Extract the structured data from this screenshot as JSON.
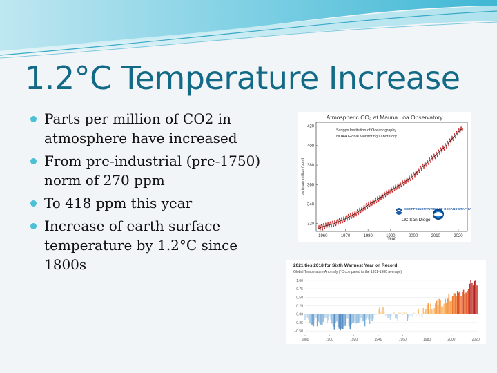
{
  "slide": {
    "title": "1.2°C Temperature Increase",
    "bullets": [
      "Parts per million of CO2 in atmosphere have increased",
      "From pre-industrial (pre-1750) norm of 270 ppm",
      "To 418 ppm this year",
      "Increase of earth surface temperature by 1.2°C since 1800s"
    ],
    "accent_color": "#136a86",
    "bullet_color": "#4cc1d6"
  },
  "chart_data": [
    {
      "type": "line",
      "title": "Atmospheric CO₂ at Mauna Loa Observatory",
      "subtitle_lines": [
        "Scripps Institution of Oceanography",
        "NOAA Global Monitoring Laboratory"
      ],
      "xlabel": "Year",
      "ylabel": "parts per million (ppm)",
      "xlim": [
        1957,
        2024
      ],
      "ylim": [
        312,
        424
      ],
      "x_ticks": [
        1960,
        1970,
        1980,
        1990,
        2000,
        2010,
        2020
      ],
      "y_ticks": [
        320,
        340,
        360,
        380,
        400,
        420
      ],
      "series": [
        {
          "color": "#c81414",
          "x": [
            1958,
            1960,
            1965,
            1970,
            1975,
            1980,
            1985,
            1990,
            1995,
            2000,
            2005,
            2010,
            2015,
            2020,
            2022
          ],
          "values": [
            315,
            317,
            320,
            325,
            331,
            339,
            346,
            354,
            361,
            369,
            380,
            390,
            401,
            414,
            418
          ]
        }
      ],
      "seasonal_amplitude_ppm": 3,
      "logos": [
        "SCRIPPS INSTITUTION OF OCEANOGRAPHY",
        "UC San Diego",
        "NOAA"
      ]
    },
    {
      "type": "bar",
      "title": "2021 ties 2018 for Sixth Warmest Year on Record",
      "subtitle": "Global Temperature Anomaly (°C compared to the 1951-1980 average)",
      "xlim": [
        1880,
        2021
      ],
      "ylim": [
        -0.6,
        1.1
      ],
      "x_ticks": [
        1880,
        1900,
        1920,
        1940,
        1960,
        1980,
        2000,
        2020
      ],
      "y_ticks": [
        "1.00",
        "0.75",
        "0.50",
        "0.25",
        "0.00",
        "−0.25",
        "−0.50"
      ],
      "x": [
        1880,
        1881,
        1882,
        1883,
        1884,
        1885,
        1886,
        1887,
        1888,
        1889,
        1890,
        1891,
        1892,
        1893,
        1894,
        1895,
        1896,
        1897,
        1898,
        1899,
        1900,
        1901,
        1902,
        1903,
        1904,
        1905,
        1906,
        1907,
        1908,
        1909,
        1910,
        1911,
        1912,
        1913,
        1914,
        1915,
        1916,
        1917,
        1918,
        1919,
        1920,
        1921,
        1922,
        1923,
        1924,
        1925,
        1926,
        1927,
        1928,
        1929,
        1930,
        1931,
        1932,
        1933,
        1934,
        1935,
        1936,
        1937,
        1938,
        1939,
        1940,
        1941,
        1942,
        1943,
        1944,
        1945,
        1946,
        1947,
        1948,
        1949,
        1950,
        1951,
        1952,
        1953,
        1954,
        1955,
        1956,
        1957,
        1958,
        1959,
        1960,
        1961,
        1962,
        1963,
        1964,
        1965,
        1966,
        1967,
        1968,
        1969,
        1970,
        1971,
        1972,
        1973,
        1974,
        1975,
        1976,
        1977,
        1978,
        1979,
        1980,
        1981,
        1982,
        1983,
        1984,
        1985,
        1986,
        1987,
        1988,
        1989,
        1990,
        1991,
        1992,
        1993,
        1994,
        1995,
        1996,
        1997,
        1998,
        1999,
        2000,
        2001,
        2002,
        2003,
        2004,
        2005,
        2006,
        2007,
        2008,
        2009,
        2010,
        2011,
        2012,
        2013,
        2014,
        2015,
        2016,
        2017,
        2018,
        2019,
        2020,
        2021
      ],
      "values": [
        -0.17,
        -0.09,
        -0.11,
        -0.17,
        -0.28,
        -0.33,
        -0.31,
        -0.36,
        -0.18,
        -0.11,
        -0.36,
        -0.22,
        -0.27,
        -0.31,
        -0.32,
        -0.23,
        -0.11,
        -0.11,
        -0.27,
        -0.18,
        -0.08,
        -0.16,
        -0.28,
        -0.37,
        -0.47,
        -0.26,
        -0.22,
        -0.39,
        -0.43,
        -0.48,
        -0.43,
        -0.44,
        -0.36,
        -0.35,
        -0.15,
        -0.14,
        -0.36,
        -0.46,
        -0.3,
        -0.27,
        -0.27,
        -0.19,
        -0.28,
        -0.26,
        -0.27,
        -0.22,
        -0.11,
        -0.22,
        -0.2,
        -0.36,
        -0.16,
        -0.1,
        -0.16,
        -0.29,
        -0.13,
        -0.2,
        -0.15,
        -0.03,
        0.0,
        -0.02,
        0.13,
        0.19,
        0.07,
        0.09,
        0.2,
        0.09,
        -0.07,
        -0.03,
        -0.11,
        -0.11,
        -0.17,
        -0.07,
        0.01,
        0.08,
        -0.13,
        -0.14,
        -0.19,
        0.05,
        0.06,
        0.03,
        -0.03,
        0.06,
        0.03,
        0.05,
        -0.2,
        -0.11,
        -0.06,
        -0.02,
        -0.08,
        0.05,
        0.03,
        -0.08,
        0.01,
        0.16,
        -0.07,
        -0.01,
        -0.1,
        0.18,
        0.07,
        0.16,
        0.26,
        0.32,
        0.14,
        0.31,
        0.16,
        0.12,
        0.18,
        0.32,
        0.39,
        0.27,
        0.45,
        0.4,
        0.22,
        0.23,
        0.31,
        0.45,
        0.33,
        0.46,
        0.61,
        0.38,
        0.39,
        0.54,
        0.63,
        0.62,
        0.53,
        0.68,
        0.64,
        0.66,
        0.54,
        0.65,
        0.72,
        0.61,
        0.64,
        0.68,
        0.75,
        0.9,
        1.01,
        0.92,
        0.85,
        0.98,
        1.02,
        0.85
      ]
    }
  ]
}
